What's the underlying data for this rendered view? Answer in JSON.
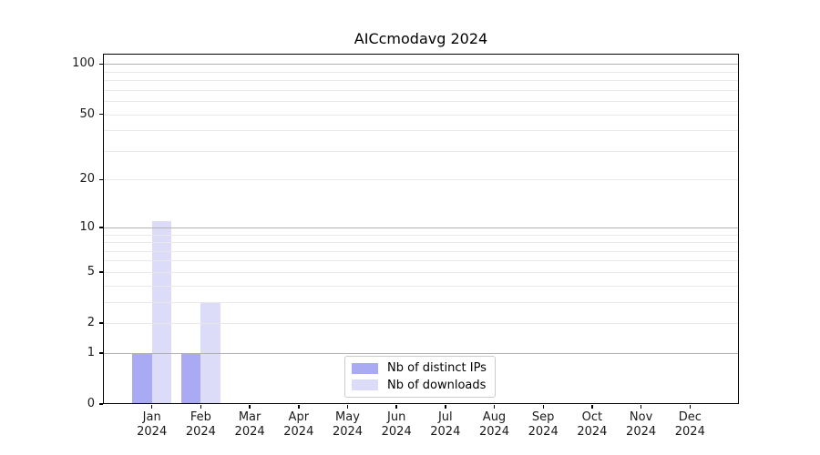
{
  "title": "AICcmodavg 2024",
  "chart_data": {
    "type": "bar",
    "title": "AICcmodavg 2024",
    "x_categories": [
      {
        "month": "Jan",
        "year": "2024"
      },
      {
        "month": "Feb",
        "year": "2024"
      },
      {
        "month": "Mar",
        "year": "2024"
      },
      {
        "month": "Apr",
        "year": "2024"
      },
      {
        "month": "May",
        "year": "2024"
      },
      {
        "month": "Jun",
        "year": "2024"
      },
      {
        "month": "Jul",
        "year": "2024"
      },
      {
        "month": "Aug",
        "year": "2024"
      },
      {
        "month": "Sep",
        "year": "2024"
      },
      {
        "month": "Oct",
        "year": "2024"
      },
      {
        "month": "Nov",
        "year": "2024"
      },
      {
        "month": "Dec",
        "year": "2024"
      }
    ],
    "series": [
      {
        "name": "Nb of distinct IPs",
        "color": "#a9a9f4",
        "values": [
          1,
          1,
          0,
          0,
          0,
          0,
          0,
          0,
          0,
          0,
          0,
          0
        ]
      },
      {
        "name": "Nb of downloads",
        "color": "#dcdcf8",
        "values": [
          11,
          3,
          0,
          0,
          0,
          0,
          0,
          0,
          0,
          0,
          0,
          0
        ]
      }
    ],
    "yscale": "log1p",
    "ylim": [
      0,
      115
    ],
    "xlim": [
      -1,
      12
    ],
    "y_tick_values": [
      0,
      1,
      2,
      5,
      10,
      20,
      50,
      100
    ],
    "y_grid_major": [
      1,
      10,
      100
    ],
    "y_grid_minor": [
      2,
      3,
      4,
      5,
      6,
      7,
      8,
      9,
      20,
      30,
      40,
      50,
      60,
      70,
      80,
      90
    ],
    "grid": true,
    "legend_position": "lower center"
  },
  "colors": {
    "background": "#ffffff",
    "bar_distinct_ips": "#a9a9f4",
    "bar_downloads": "#dcdcf8",
    "grid_major": "#b3b3b3",
    "grid_minor": "#e9e9e9",
    "spine": "#000000",
    "text": "#1a1a1a",
    "legend_border": "#cccccc"
  }
}
